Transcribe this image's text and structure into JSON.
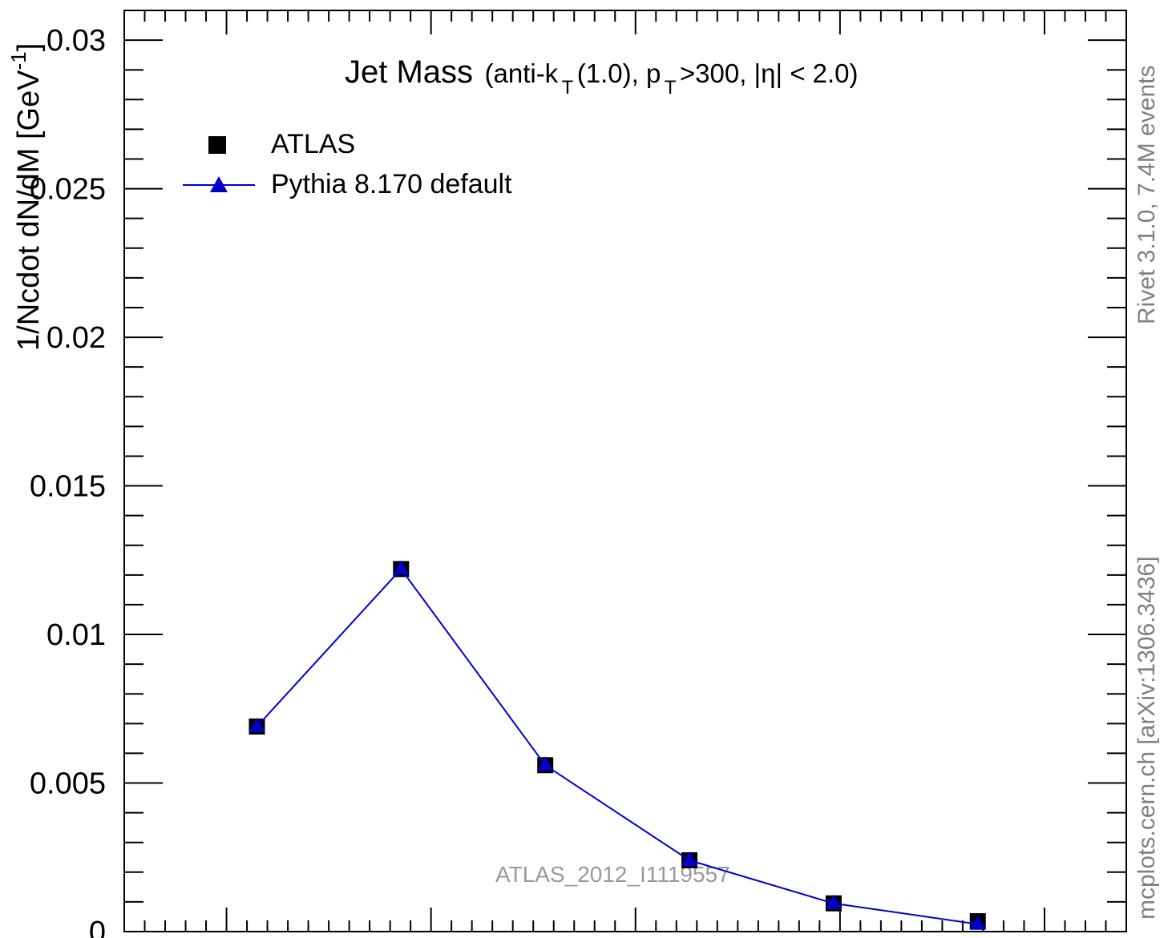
{
  "chart_data": {
    "type": "scatter",
    "title": {
      "main": "Jet Mass",
      "sub_prefix": "(anti-k",
      "sub_t1": "T",
      "sub_mid": "(1.0), p",
      "sub_t2": "T",
      "sub_suffix": ">300, |η| < 2.0)"
    },
    "ylabel": {
      "main": "1/Ncdot dN/dM [GeV",
      "sup": "-1",
      "close": "]"
    },
    "ylim": [
      0,
      0.031
    ],
    "yticks": [
      "0",
      "0.005",
      "0.01",
      "0.015",
      "0.02",
      "0.025",
      "0.03"
    ],
    "ytick_values": [
      0,
      0.005,
      0.01,
      0.015,
      0.02,
      0.025,
      0.03
    ],
    "legend": {
      "placement": "top-left",
      "entries": [
        "ATLAS",
        "Pythia 8.170 default"
      ]
    },
    "series": [
      {
        "name": "ATLAS",
        "marker": "square",
        "color": "#000000",
        "points": [
          {
            "x": 1,
            "y": 0.0069
          },
          {
            "x": 2,
            "y": 0.0122
          },
          {
            "x": 3,
            "y": 0.0056
          },
          {
            "x": 4,
            "y": 0.0024
          },
          {
            "x": 5,
            "y": 0.00095
          },
          {
            "x": 6,
            "y": 0.00035
          }
        ]
      },
      {
        "name": "Pythia 8.170 default",
        "marker": "triangle",
        "color": "#0000cc",
        "points": [
          {
            "x": 1,
            "y": 0.0069
          },
          {
            "x": 2,
            "y": 0.0122
          },
          {
            "x": 3,
            "y": 0.0056
          },
          {
            "x": 4,
            "y": 0.0024
          },
          {
            "x": 5,
            "y": 0.00095
          },
          {
            "x": 6,
            "y": 0.00025
          }
        ]
      }
    ],
    "right_label_top": "Rivet 3.1.0,  7.4M events",
    "right_label_bottom": "mcplots.cern.ch [arXiv:1306.3436]",
    "watermark": "ATLAS_2012_I1119557"
  }
}
